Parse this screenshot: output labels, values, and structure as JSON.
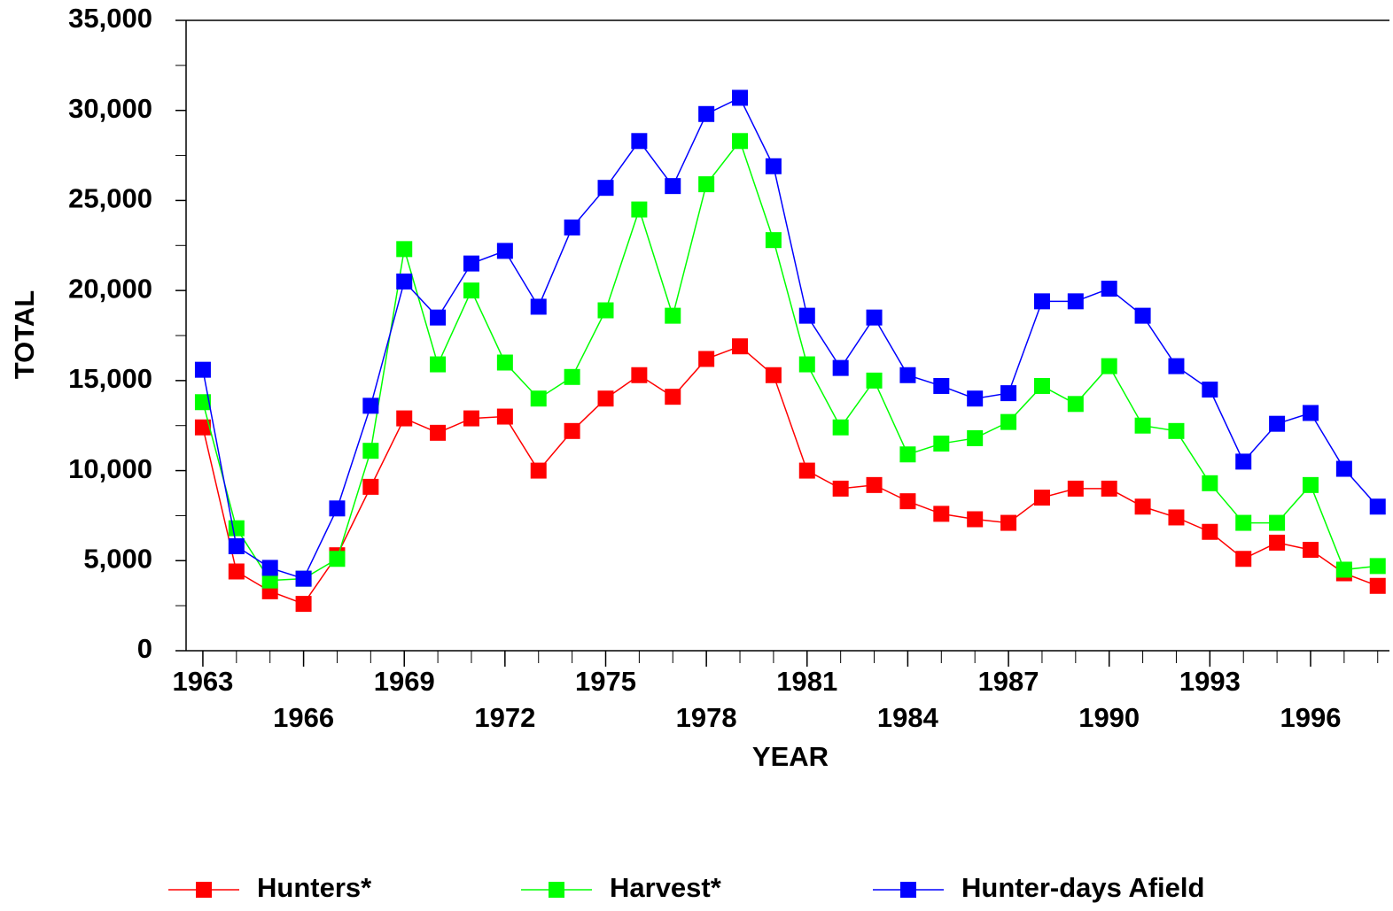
{
  "chart_data": {
    "type": "line",
    "xlabel": "YEAR",
    "ylabel": "TOTAL",
    "x": [
      1963,
      1964,
      1965,
      1966,
      1967,
      1968,
      1969,
      1970,
      1971,
      1972,
      1973,
      1974,
      1975,
      1976,
      1977,
      1978,
      1979,
      1980,
      1981,
      1982,
      1983,
      1984,
      1985,
      1986,
      1987,
      1988,
      1989,
      1990,
      1991,
      1992,
      1993,
      1994,
      1995,
      1996,
      1997,
      1998
    ],
    "series": [
      {
        "name": "Hunters*",
        "color": "#ff0000",
        "values": [
          12400,
          4400,
          3300,
          2600,
          5300,
          9100,
          12900,
          12100,
          12900,
          13000,
          10000,
          12200,
          14000,
          15300,
          14100,
          16200,
          16900,
          15300,
          10000,
          9000,
          9200,
          8300,
          7600,
          7300,
          7100,
          8500,
          9000,
          9000,
          8000,
          7400,
          6600,
          5100,
          6000,
          5600,
          4300,
          3600
        ]
      },
      {
        "name": "Harvest*",
        "color": "#00ff00",
        "values": [
          13800,
          6800,
          3900,
          4000,
          5100,
          11100,
          22300,
          15900,
          20000,
          16000,
          14000,
          15200,
          18900,
          24500,
          18600,
          25900,
          28300,
          22800,
          15900,
          12400,
          15000,
          10900,
          11500,
          11800,
          12700,
          14700,
          13700,
          15800,
          12500,
          12200,
          9300,
          7100,
          7100,
          9200,
          4500,
          4700
        ]
      },
      {
        "name": "Hunter-days Afield",
        "color": "#0000ff",
        "values": [
          15600,
          5800,
          4600,
          4000,
          7900,
          13600,
          20500,
          18500,
          21500,
          22200,
          19100,
          23500,
          25700,
          28300,
          25800,
          29800,
          30700,
          26900,
          18600,
          15700,
          18500,
          15300,
          14700,
          14000,
          14300,
          19400,
          19400,
          20100,
          18600,
          15800,
          14500,
          10500,
          12600,
          13200,
          10100,
          8000
        ]
      }
    ],
    "xlim": [
      1962.5,
      1998.35
    ],
    "xticks": [
      1963,
      1966,
      1969,
      1972,
      1975,
      1978,
      1981,
      1984,
      1987,
      1990,
      1993,
      1996
    ],
    "ylim": [
      0,
      35000
    ],
    "yticks": [
      0,
      {
        "value": 5000,
        "label": "5,000"
      },
      {
        "value": 10000,
        "label": "10,000"
      },
      {
        "value": 15000,
        "label": "15,000"
      },
      {
        "value": 20000,
        "label": "20,000"
      },
      {
        "value": 25000,
        "label": "25,000"
      },
      {
        "value": 30000,
        "label": "30,000"
      },
      {
        "value": 35000,
        "label": "35,000"
      }
    ],
    "yminorticks": [
      2500,
      7500,
      12500,
      17500,
      22500,
      27500,
      32500
    ],
    "legend": "bottom"
  }
}
